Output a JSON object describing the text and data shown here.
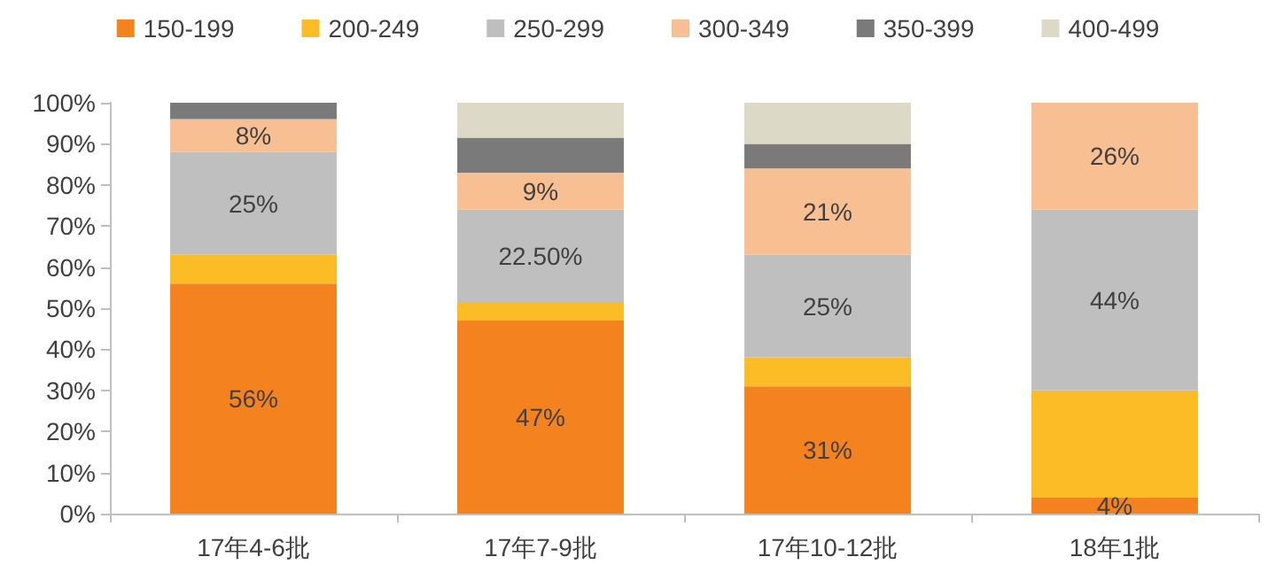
{
  "chart_data": {
    "type": "bar",
    "stacked": true,
    "categories": [
      "17年4-6批",
      "17年7-9批",
      "17年10-12批",
      "18年1批"
    ],
    "series": [
      {
        "name": "150-199",
        "color": "#f4821f",
        "values": [
          56,
          47,
          31,
          4
        ],
        "value_labels": [
          "56%",
          "47%",
          "31%",
          "4%"
        ]
      },
      {
        "name": "200-249",
        "color": "#fbbc26",
        "values": [
          7,
          4.5,
          7,
          26
        ],
        "value_labels": [
          null,
          null,
          null,
          null
        ]
      },
      {
        "name": "250-299",
        "color": "#bfbfbf",
        "values": [
          25,
          22.5,
          25,
          44
        ],
        "value_labels": [
          "25%",
          "22.50%",
          "25%",
          "44%"
        ]
      },
      {
        "name": "300-349",
        "color": "#f8bf92",
        "values": [
          8,
          9,
          21,
          26
        ],
        "value_labels": [
          "8%",
          "9%",
          "21%",
          "26%"
        ]
      },
      {
        "name": "350-399",
        "color": "#7a7a7a",
        "values": [
          4,
          8.5,
          6,
          0
        ],
        "value_labels": [
          null,
          null,
          null,
          null
        ]
      },
      {
        "name": "400-499",
        "color": "#dcd9c6",
        "values": [
          0,
          8.5,
          10,
          0
        ],
        "value_labels": [
          null,
          null,
          null,
          null
        ]
      }
    ],
    "ylim": [
      0,
      100
    ],
    "yticks": [
      {
        "value": 0,
        "label": "0%"
      },
      {
        "value": 10,
        "label": "10%"
      },
      {
        "value": 20,
        "label": "20%"
      },
      {
        "value": 30,
        "label": "30%"
      },
      {
        "value": 40,
        "label": "40%"
      },
      {
        "value": 50,
        "label": "50%"
      },
      {
        "value": 60,
        "label": "60%"
      },
      {
        "value": 70,
        "label": "70%"
      },
      {
        "value": 80,
        "label": "80%"
      },
      {
        "value": 90,
        "label": "90%"
      },
      {
        "value": 100,
        "label": "100%"
      }
    ],
    "grid": false,
    "legend": "top"
  }
}
